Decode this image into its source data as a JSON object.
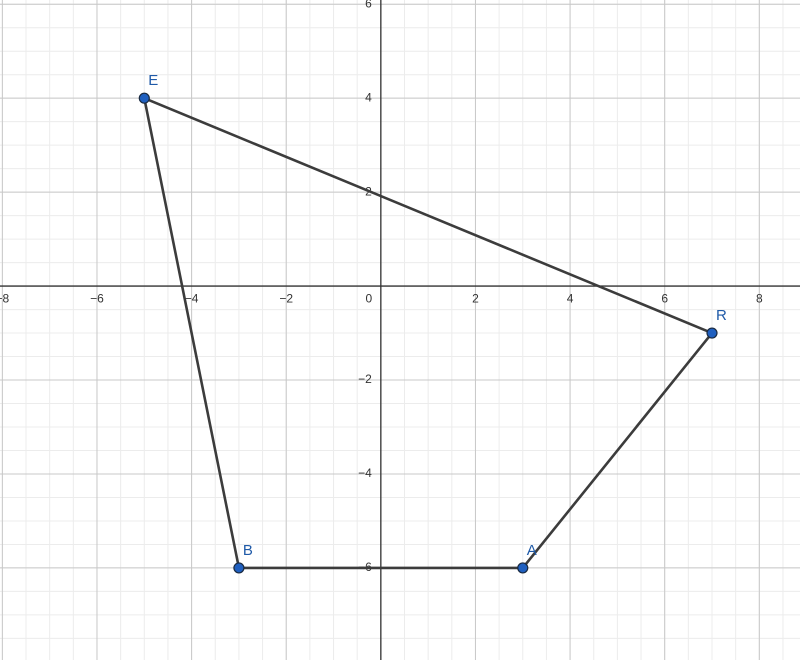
{
  "chart_data": {
    "type": "polygon",
    "x": [
      -5,
      7,
      3,
      -3
    ],
    "values": [
      4,
      -1,
      -6,
      -6
    ],
    "point_labels": [
      "E",
      "R",
      "A",
      "B"
    ],
    "color": "#1f5fbf",
    "line_color": "#3c3c3c",
    "label_color": "#1f5aa8",
    "xlim": [
      -8.05,
      8.86
    ],
    "ylim": [
      -7.96,
      6.09
    ],
    "xticks": [
      {
        "value": -8,
        "label": "−8"
      },
      {
        "value": -6,
        "label": "−6"
      },
      {
        "value": -4,
        "label": "−4"
      },
      {
        "value": -2,
        "label": "−2"
      },
      0,
      2,
      4,
      6,
      8
    ],
    "yticks": [
      {
        "value": -6,
        "label": "−6"
      },
      {
        "value": -4,
        "label": "−4"
      },
      {
        "value": -2,
        "label": "−2"
      },
      2,
      4,
      6
    ],
    "minor_grid_step": 0.5,
    "grid": true
  }
}
